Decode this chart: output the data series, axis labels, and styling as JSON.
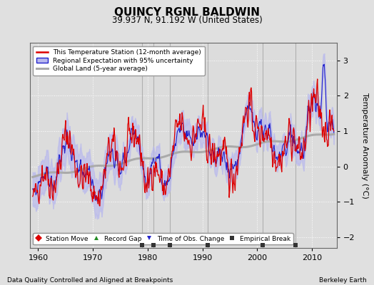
{
  "title": "QUINCY RGNL BALDWIN",
  "subtitle": "39.937 N, 91.192 W (United States)",
  "ylabel": "Temperature Anomaly (°C)",
  "xlabel_left": "Data Quality Controlled and Aligned at Breakpoints",
  "xlabel_right": "Berkeley Earth",
  "ylim": [
    -2.3,
    3.5
  ],
  "xlim": [
    1958.5,
    2014.5
  ],
  "xticks": [
    1960,
    1970,
    1980,
    1990,
    2000,
    2010
  ],
  "yticks": [
    -2,
    -1,
    0,
    1,
    2,
    3
  ],
  "bg_color": "#e0e0e0",
  "plot_bg_color": "#dcdcdc",
  "grid_color": "#ffffff",
  "station_line_color": "#dd0000",
  "regional_line_color": "#2222cc",
  "regional_fill_color": "#b8b8ee",
  "global_line_color": "#aaaaaa",
  "empirical_break_years": [
    1979,
    1981,
    1984,
    1991,
    2001,
    2007
  ],
  "vline_color": "#aaaaaa",
  "legend1_labels": [
    "This Temperature Station (12-month average)",
    "Regional Expectation with 95% uncertainty",
    "Global Land (5-year average)"
  ],
  "legend2_labels": [
    "Station Move",
    "Record Gap",
    "Time of Obs. Change",
    "Empirical Break"
  ],
  "legend2_markers": [
    "D",
    "^",
    "v",
    "s"
  ],
  "legend2_colors": [
    "#dd0000",
    "#228B22",
    "#2222cc",
    "#333333"
  ]
}
